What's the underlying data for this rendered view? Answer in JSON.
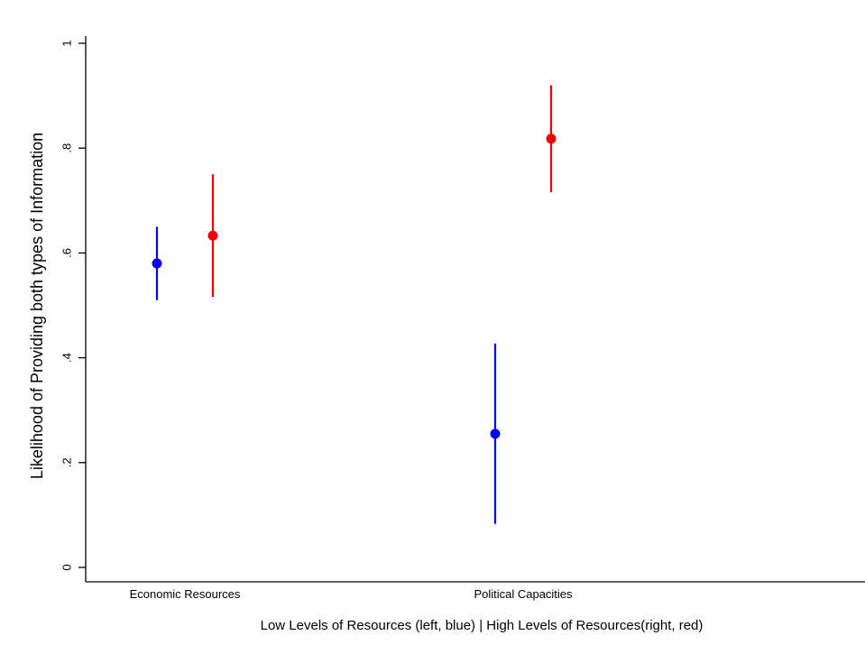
{
  "chart_data": {
    "type": "scatter",
    "subtype": "point-estimate-with-confidence-interval",
    "title": "",
    "xlabel": "Low Levels of Resources (left, blue) | High Levels of Resources(right, red)",
    "ylabel": "Likelihood of Providing both types of Information",
    "categories": [
      "Economic Resources",
      "Political Capacities"
    ],
    "yticks": [
      0,
      0.2,
      0.4,
      0.6,
      0.8,
      1
    ],
    "ytick_labels": [
      "0",
      ".2",
      ".4",
      ".6",
      ".8",
      "1"
    ],
    "ylim": [
      0,
      1
    ],
    "grid": false,
    "legend": "none",
    "series": [
      {
        "color": "#0000ff",
        "points": [
          {
            "category": "Economic Resources",
            "estimate": 0.58,
            "lower": 0.51,
            "upper": 0.65
          },
          {
            "category": "Political Capacities",
            "estimate": 0.255,
            "lower": 0.083,
            "upper": 0.427
          }
        ]
      },
      {
        "color": "#ee0000",
        "points": [
          {
            "category": "Economic Resources",
            "estimate": 0.633,
            "lower": 0.516,
            "upper": 0.75
          },
          {
            "category": "Political Capacities",
            "estimate": 0.818,
            "lower": 0.716,
            "upper": 0.92
          }
        ]
      }
    ]
  }
}
